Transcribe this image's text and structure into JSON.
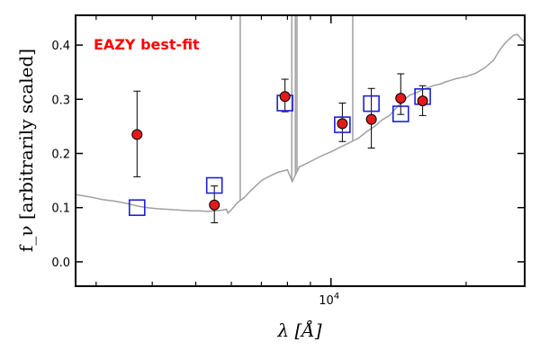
{
  "chart_data": {
    "type": "scatter",
    "title": "",
    "xlabel": "λ [Å]",
    "ylabel": "f_ν [arbitrarily scaled]",
    "xscale": "log",
    "xlim": [
      2700,
      27000
    ],
    "ylim": [
      -0.045,
      0.455
    ],
    "yticks": [
      0.0,
      0.1,
      0.2,
      0.3,
      0.4
    ],
    "ytick_labels": [
      "0.0",
      "0.1",
      "0.2",
      "0.3",
      "0.4"
    ],
    "xtick_major": [
      10000
    ],
    "xtick_major_label_base": "10",
    "xtick_major_label_exp": "4",
    "xtick_minor": [
      3000,
      4000,
      5000,
      6000,
      7000,
      8000,
      9000,
      20000
    ],
    "annotation": {
      "text": "EAZY best-fit",
      "color": "#ff0000"
    },
    "grid": false,
    "series": [
      {
        "kind": "observed",
        "marker": "circle",
        "color": "#e31a1c",
        "points": [
          {
            "x": 3700,
            "y": 0.235,
            "yerr_low": 0.078,
            "yerr_high": 0.08
          },
          {
            "x": 5500,
            "y": 0.105,
            "yerr_low": 0.033,
            "yerr_high": 0.035
          },
          {
            "x": 7900,
            "y": 0.305,
            "yerr_low": 0.028,
            "yerr_high": 0.032
          },
          {
            "x": 10600,
            "y": 0.255,
            "yerr_low": 0.033,
            "yerr_high": 0.038
          },
          {
            "x": 12300,
            "y": 0.263,
            "yerr_low": 0.053,
            "yerr_high": 0.057
          },
          {
            "x": 14300,
            "y": 0.302,
            "yerr_low": 0.03,
            "yerr_high": 0.045
          },
          {
            "x": 16000,
            "y": 0.297,
            "yerr_low": 0.027,
            "yerr_high": 0.028
          }
        ]
      },
      {
        "kind": "model",
        "marker": "square",
        "color": "#1f1fd6",
        "points": [
          {
            "x": 3700,
            "y": 0.1
          },
          {
            "x": 5500,
            "y": 0.141
          },
          {
            "x": 7900,
            "y": 0.293
          },
          {
            "x": 10600,
            "y": 0.253
          },
          {
            "x": 12300,
            "y": 0.292
          },
          {
            "x": 14300,
            "y": 0.273
          },
          {
            "x": 16000,
            "y": 0.305
          }
        ]
      },
      {
        "kind": "template",
        "style": "line",
        "color": "#a0a0a0",
        "points": [
          {
            "x": 2700,
            "y": 0.124
          },
          {
            "x": 2900,
            "y": 0.12
          },
          {
            "x": 3100,
            "y": 0.115
          },
          {
            "x": 3300,
            "y": 0.112
          },
          {
            "x": 3500,
            "y": 0.108
          },
          {
            "x": 3700,
            "y": 0.103
          },
          {
            "x": 3900,
            "y": 0.1
          },
          {
            "x": 4100,
            "y": 0.098
          },
          {
            "x": 4300,
            "y": 0.097
          },
          {
            "x": 4500,
            "y": 0.096
          },
          {
            "x": 4700,
            "y": 0.095
          },
          {
            "x": 4900,
            "y": 0.094
          },
          {
            "x": 5100,
            "y": 0.094
          },
          {
            "x": 5300,
            "y": 0.093
          },
          {
            "x": 5500,
            "y": 0.094
          },
          {
            "x": 5700,
            "y": 0.095
          },
          {
            "x": 5850,
            "y": 0.097
          },
          {
            "x": 5900,
            "y": 0.09
          },
          {
            "x": 6000,
            "y": 0.096
          },
          {
            "x": 6200,
            "y": 0.11
          },
          {
            "x": 6400,
            "y": 0.118
          },
          {
            "x": 6600,
            "y": 0.13
          },
          {
            "x": 6800,
            "y": 0.14
          },
          {
            "x": 7000,
            "y": 0.15
          },
          {
            "x": 7300,
            "y": 0.158
          },
          {
            "x": 7600,
            "y": 0.165
          },
          {
            "x": 8000,
            "y": 0.17
          },
          {
            "x": 8200,
            "y": 0.148
          },
          {
            "x": 8500,
            "y": 0.175
          },
          {
            "x": 9000,
            "y": 0.185
          },
          {
            "x": 9500,
            "y": 0.195
          },
          {
            "x": 10000,
            "y": 0.203
          },
          {
            "x": 10500,
            "y": 0.212
          },
          {
            "x": 11000,
            "y": 0.22
          },
          {
            "x": 11500,
            "y": 0.228
          },
          {
            "x": 12000,
            "y": 0.24
          },
          {
            "x": 12500,
            "y": 0.25
          },
          {
            "x": 13000,
            "y": 0.262
          },
          {
            "x": 13500,
            "y": 0.27
          },
          {
            "x": 14000,
            "y": 0.285
          },
          {
            "x": 14500,
            "y": 0.298
          },
          {
            "x": 15000,
            "y": 0.308
          },
          {
            "x": 15500,
            "y": 0.312
          },
          {
            "x": 16000,
            "y": 0.318
          },
          {
            "x": 16500,
            "y": 0.322
          },
          {
            "x": 17000,
            "y": 0.326
          },
          {
            "x": 17500,
            "y": 0.328
          },
          {
            "x": 18000,
            "y": 0.332
          },
          {
            "x": 18500,
            "y": 0.335
          },
          {
            "x": 19000,
            "y": 0.338
          },
          {
            "x": 19500,
            "y": 0.34
          },
          {
            "x": 20000,
            "y": 0.342
          },
          {
            "x": 21000,
            "y": 0.348
          },
          {
            "x": 22000,
            "y": 0.358
          },
          {
            "x": 23000,
            "y": 0.372
          },
          {
            "x": 23800,
            "y": 0.392
          },
          {
            "x": 24500,
            "y": 0.405
          },
          {
            "x": 25000,
            "y": 0.412
          },
          {
            "x": 25500,
            "y": 0.418
          },
          {
            "x": 26000,
            "y": 0.42
          },
          {
            "x": 26500,
            "y": 0.412
          },
          {
            "x": 27000,
            "y": 0.405
          }
        ],
        "emission_lines": [
          {
            "x": 6280,
            "y": 0.455
          },
          {
            "x": 8180,
            "y": 0.455
          },
          {
            "x": 8330,
            "y": 0.455
          },
          {
            "x": 8400,
            "y": 0.455
          },
          {
            "x": 11180,
            "y": 0.455
          }
        ]
      }
    ]
  }
}
